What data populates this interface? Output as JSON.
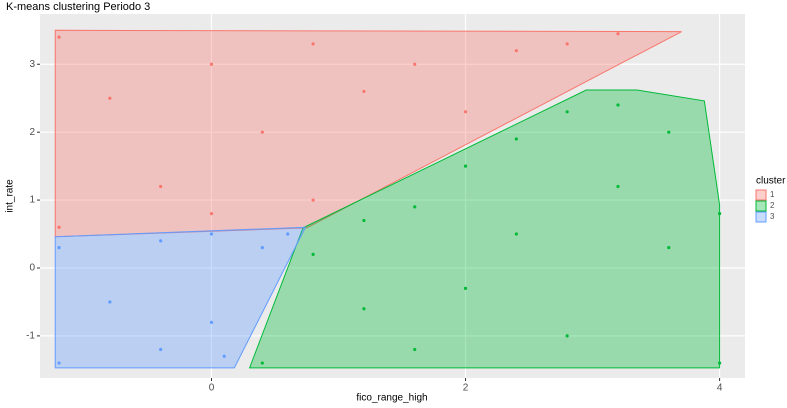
{
  "chart_data": {
    "type": "scatter",
    "title": "K-means clustering Periodo 3",
    "x_label": "fico_range_high",
    "y_label": "int_rate",
    "legend_title": "cluster",
    "xlim": [
      -1.35,
      4.2
    ],
    "ylim": [
      -1.62,
      3.74
    ],
    "xticks": [
      0,
      2,
      4
    ],
    "yticks": [
      -1,
      0,
      1,
      2,
      3
    ],
    "grid": true,
    "legend_position": "right",
    "series": [
      {
        "name": "1",
        "color": "#F8766D",
        "hull": {
          "x": [
            -1.23,
            3.7,
            0.75,
            -1.23
          ],
          "y": [
            3.5,
            3.48,
            0.59,
            0.46
          ]
        },
        "x": [
          -1.2,
          -1.2,
          -0.8,
          -0.4,
          0,
          0,
          0.4,
          0.8,
          0.8,
          1.2,
          1.6,
          2.0,
          2.4,
          2.8,
          3.2
        ],
        "y": [
          3.4,
          0.6,
          2.5,
          1.2,
          3.0,
          0.8,
          2.0,
          3.3,
          1.0,
          2.6,
          3.0,
          2.3,
          3.2,
          3.3,
          3.45
        ]
      },
      {
        "name": "2",
        "color": "#00BA38",
        "hull": {
          "x": [
            0.3,
            4.0,
            4.0,
            3.88,
            3.35,
            2.95,
            0.72
          ],
          "y": [
            -1.47,
            -1.47,
            0.93,
            2.46,
            2.62,
            2.62,
            0.59
          ]
        },
        "x": [
          0.4,
          0.8,
          1.2,
          1.2,
          1.6,
          1.6,
          2.0,
          2.0,
          2.4,
          2.4,
          2.8,
          2.8,
          3.2,
          3.2,
          3.6,
          3.6,
          4.0,
          4.0
        ],
        "y": [
          -1.4,
          0.2,
          -0.6,
          0.7,
          -1.2,
          0.9,
          1.5,
          -0.3,
          0.5,
          1.9,
          2.3,
          -1.0,
          1.2,
          2.4,
          0.3,
          2.0,
          -1.4,
          0.8
        ]
      },
      {
        "name": "3",
        "color": "#619CFF",
        "hull": {
          "x": [
            -1.23,
            0.74,
            0.18,
            -1.23
          ],
          "y": [
            0.46,
            0.6,
            -1.47,
            -1.47
          ]
        },
        "x": [
          -1.2,
          -1.2,
          -0.8,
          -0.4,
          -0.4,
          0,
          0,
          0.1,
          0.4,
          0.6
        ],
        "y": [
          -1.4,
          0.3,
          -0.5,
          0.4,
          -1.2,
          -0.8,
          0.5,
          -1.3,
          0.3,
          0.5
        ]
      }
    ]
  }
}
